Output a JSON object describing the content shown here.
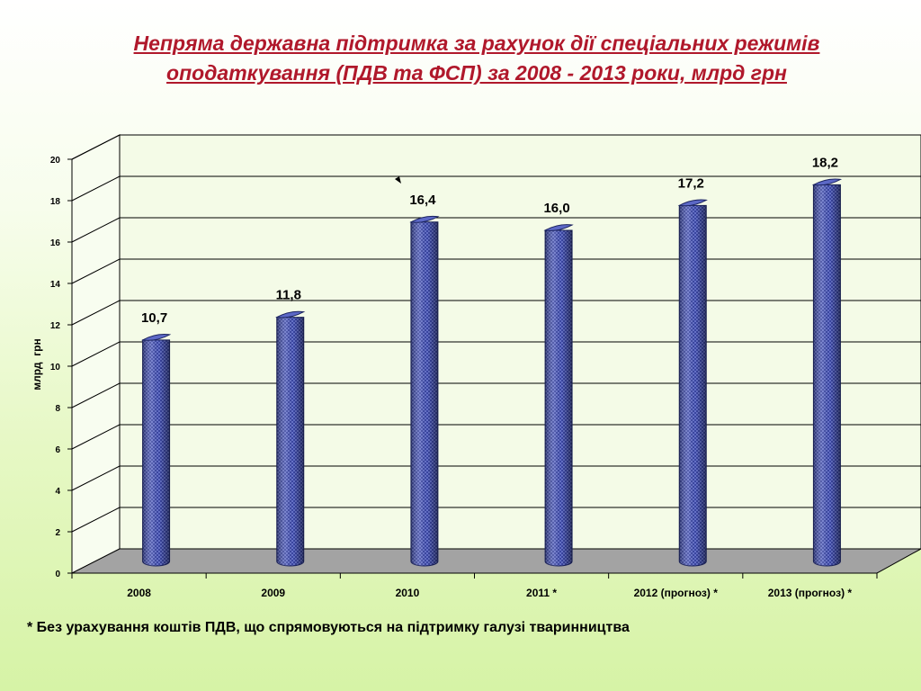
{
  "title": {
    "line1": "Непряма державна підтримка за рахунок дії спеціальних режимів",
    "line2": "оподаткування (ПДВ та ФСП) за 2008 - 2013 роки, млрд грн"
  },
  "footnote": "* Без урахування коштів ПДВ, що спрямовуються на підтримку галузі тваринництва",
  "colors": {
    "bar": "#3a46a2",
    "bar_top": "#5c68c6",
    "floor": "#a3a3a3",
    "title": "#b0182b"
  },
  "chart_data": {
    "type": "bar",
    "categories": [
      "2008",
      "2009",
      "2010",
      "2011 *",
      "2012 (прогноз) *",
      "2013 (прогноз) *"
    ],
    "values": [
      10.7,
      11.8,
      16.4,
      16.0,
      17.2,
      18.2
    ],
    "data_labels": [
      "10,7",
      "11,8",
      "16,4",
      "16,0",
      "17,2",
      "18,2"
    ],
    "ylabel": "млрд  грн",
    "xlabel": "",
    "ylim": [
      0,
      20
    ],
    "yticks": [
      0,
      2,
      4,
      6,
      8,
      10,
      12,
      14,
      16,
      18,
      20
    ],
    "grid": true,
    "style": "3d-cylinder"
  }
}
